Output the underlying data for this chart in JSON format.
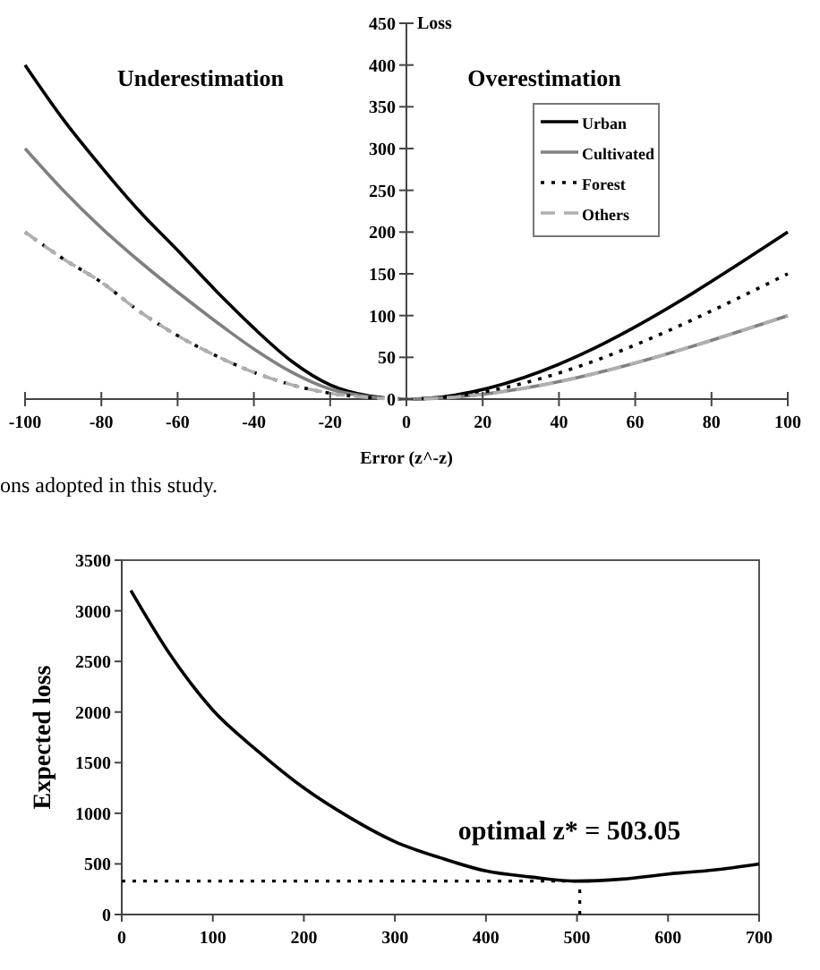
{
  "chart_data": [
    {
      "type": "line",
      "xlabel": "Error (z^-z)",
      "ylabel": "Loss",
      "x": [
        -100,
        -90,
        -80,
        -70,
        -60,
        -50,
        -40,
        -30,
        -20,
        -10,
        0,
        100
      ],
      "xlim": [
        -100,
        100
      ],
      "xticks": [
        -100,
        -80,
        -60,
        -40,
        -20,
        0,
        20,
        40,
        60,
        80,
        100
      ],
      "ylim": [
        0,
        450
      ],
      "yticks": [
        0,
        50,
        100,
        150,
        200,
        250,
        300,
        350,
        400,
        450
      ],
      "legend": "top right",
      "grid": false,
      "series": [
        {
          "name": "Urban",
          "color": "#000000",
          "line_style": "solid",
          "values": [
            400,
            335,
            278,
            225,
            178,
            130,
            85,
            45,
            17,
            4,
            0,
            200
          ]
        },
        {
          "name": "Cultivated",
          "color": "#808080",
          "line_style": "solid",
          "values": [
            300,
            250,
            205,
            165,
            128,
            93,
            60,
            32,
            12,
            3,
            0,
            100
          ]
        },
        {
          "name": "Forest",
          "color": "#000000",
          "line_style": "dotted",
          "values": [
            200,
            168,
            140,
            105,
            76,
            52,
            32,
            17,
            7,
            2,
            0,
            150
          ]
        },
        {
          "name": "Others",
          "color": "#b0b0b0",
          "line_style": "dashed",
          "values": [
            200,
            168,
            140,
            105,
            76,
            52,
            32,
            17,
            7,
            2,
            0,
            100
          ]
        }
      ],
      "annotations": [
        "Underestimation",
        "Overestimation",
        "ons adopted in this study."
      ]
    },
    {
      "type": "line",
      "ylabel": "Expected loss",
      "x": [
        10,
        50,
        100,
        150,
        200,
        250,
        300,
        350,
        400,
        450,
        500,
        550,
        600,
        650,
        700
      ],
      "xlim": [
        0,
        700
      ],
      "xticks": [
        0,
        100,
        200,
        300,
        400,
        500,
        600,
        700
      ],
      "ylim": [
        0,
        3500
      ],
      "yticks": [
        0,
        500,
        1000,
        1500,
        2000,
        2500,
        3000,
        3500
      ],
      "grid": false,
      "series": [
        {
          "color": "#000000",
          "line_style": "solid",
          "values": [
            3200,
            2610,
            2020,
            1610,
            1250,
            960,
            720,
            560,
            430,
            370,
            330,
            350,
            400,
            440,
            500
          ]
        }
      ],
      "ref_lines": [
        {
          "axis": "x",
          "value": 503.05,
          "line_style": "dotted",
          "color": "#000000"
        },
        {
          "axis": "y",
          "value": 330,
          "line_style": "dotted",
          "color": "#000000"
        }
      ],
      "annotations": [
        "optimal z* = 503.05"
      ]
    }
  ]
}
